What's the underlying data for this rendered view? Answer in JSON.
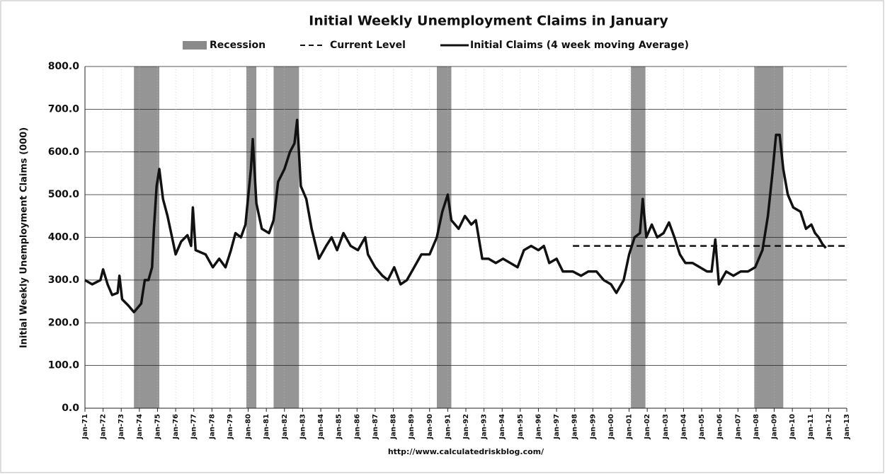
{
  "chart_data": {
    "type": "line",
    "title": "Initial Weekly Unemployment Claims in January",
    "y_label": "Initial Weekly Unemployment Claims (000)",
    "source": "http://www.calculatedriskblog.com/",
    "xlim": [
      1971,
      2013
    ],
    "ylim": [
      0,
      800
    ],
    "yticks": [
      {
        "value": 0,
        "label": "0.0"
      },
      {
        "value": 100,
        "label": "100.0"
      },
      {
        "value": 200,
        "label": "200.0"
      },
      {
        "value": 300,
        "label": "300.0"
      },
      {
        "value": 400,
        "label": "400.0"
      },
      {
        "value": 500,
        "label": "500.0"
      },
      {
        "value": 600,
        "label": "600.0"
      },
      {
        "value": 700,
        "label": "700.0"
      },
      {
        "value": 800,
        "label": "800.0"
      }
    ],
    "xticks": [
      {
        "value": 1971,
        "label": "Jan-71"
      },
      {
        "value": 1972,
        "label": "Jan-72"
      },
      {
        "value": 1973,
        "label": "Jan-73"
      },
      {
        "value": 1974,
        "label": "Jan-74"
      },
      {
        "value": 1975,
        "label": "Jan-75"
      },
      {
        "value": 1976,
        "label": "Jan-76"
      },
      {
        "value": 1977,
        "label": "Jan-77"
      },
      {
        "value": 1978,
        "label": "Jan-78"
      },
      {
        "value": 1979,
        "label": "Jan-79"
      },
      {
        "value": 1980,
        "label": "Jan-80"
      },
      {
        "value": 1981,
        "label": "Jan-81"
      },
      {
        "value": 1982,
        "label": "Jan-82"
      },
      {
        "value": 1983,
        "label": "Jan-83"
      },
      {
        "value": 1984,
        "label": "Jan-84"
      },
      {
        "value": 1985,
        "label": "Jan-85"
      },
      {
        "value": 1986,
        "label": "Jan-86"
      },
      {
        "value": 1987,
        "label": "Jan-87"
      },
      {
        "value": 1988,
        "label": "Jan-88"
      },
      {
        "value": 1989,
        "label": "Jan-89"
      },
      {
        "value": 1990,
        "label": "Jan-90"
      },
      {
        "value": 1991,
        "label": "Jan-91"
      },
      {
        "value": 1992,
        "label": "Jan-92"
      },
      {
        "value": 1993,
        "label": "Jan-93"
      },
      {
        "value": 1994,
        "label": "Jan-94"
      },
      {
        "value": 1995,
        "label": "Jan-95"
      },
      {
        "value": 1996,
        "label": "Jan-96"
      },
      {
        "value": 1997,
        "label": "Jan-97"
      },
      {
        "value": 1998,
        "label": "Jan-98"
      },
      {
        "value": 1999,
        "label": "Jan-99"
      },
      {
        "value": 2000,
        "label": "Jan-00"
      },
      {
        "value": 2001,
        "label": "Jan-01"
      },
      {
        "value": 2002,
        "label": "Jan-02"
      },
      {
        "value": 2003,
        "label": "Jan-03"
      },
      {
        "value": 2004,
        "label": "Jan-04"
      },
      {
        "value": 2005,
        "label": "Jan-05"
      },
      {
        "value": 2006,
        "label": "Jan-06"
      },
      {
        "value": 2007,
        "label": "Jan-07"
      },
      {
        "value": 2008,
        "label": "Jan-08"
      },
      {
        "value": 2009,
        "label": "Jan-09"
      },
      {
        "value": 2010,
        "label": "Jan-10"
      },
      {
        "value": 2011,
        "label": "Jan-11"
      },
      {
        "value": 2012,
        "label": "Jan-12"
      },
      {
        "value": 2013,
        "label": "Jan-13"
      }
    ],
    "grid": true,
    "recession": {
      "name": "Recession",
      "color": "#8a8a8a",
      "periods": [
        {
          "start": 1973.7,
          "end": 1975.1
        },
        {
          "start": 1979.9,
          "end": 1980.45
        },
        {
          "start": 1981.4,
          "end": 1982.8
        },
        {
          "start": 1990.4,
          "end": 1991.2
        },
        {
          "start": 2001.1,
          "end": 2001.9
        },
        {
          "start": 2007.9,
          "end": 2009.5
        }
      ]
    },
    "current_level": {
      "name": "Current Level",
      "value": 380,
      "start": 1997.9,
      "end": 2013,
      "color": "#111111"
    },
    "x": [
      1971.0,
      1971.4,
      1971.85,
      1972.0,
      1972.25,
      1972.5,
      1972.8,
      1972.9,
      1973.05,
      1973.4,
      1973.7,
      1974.1,
      1974.3,
      1974.5,
      1974.7,
      1974.8,
      1974.95,
      1975.1,
      1975.3,
      1975.55,
      1975.8,
      1976.0,
      1976.3,
      1976.65,
      1976.85,
      1976.95,
      1977.1,
      1977.65,
      1978.05,
      1978.4,
      1978.75,
      1979.05,
      1979.3,
      1979.6,
      1979.85,
      1980.15,
      1980.25,
      1980.45,
      1980.75,
      1981.15,
      1981.4,
      1981.65,
      1982.0,
      1982.3,
      1982.55,
      1982.7,
      1982.9,
      1983.2,
      1983.5,
      1983.9,
      1984.3,
      1984.6,
      1984.9,
      1985.25,
      1985.65,
      1986.05,
      1986.45,
      1986.6,
      1987.0,
      1987.4,
      1987.7,
      1988.05,
      1988.4,
      1988.75,
      1989.15,
      1989.55,
      1990.0,
      1990.4,
      1990.7,
      1991.0,
      1991.2,
      1991.6,
      1991.95,
      1992.3,
      1992.55,
      1992.9,
      1993.25,
      1993.65,
      1994.05,
      1994.45,
      1994.85,
      1995.2,
      1995.6,
      1996.0,
      1996.3,
      1996.6,
      1997.0,
      1997.35,
      1997.9,
      1998.35,
      1998.75,
      1999.2,
      1999.6,
      2000.0,
      2000.3,
      2000.7,
      2001.0,
      2001.3,
      2001.6,
      2001.75,
      2001.95,
      2002.25,
      2002.55,
      2002.9,
      2003.2,
      2003.5,
      2003.8,
      2004.1,
      2004.5,
      2004.9,
      2005.3,
      2005.55,
      2005.75,
      2005.95,
      2006.35,
      2006.75,
      2007.15,
      2007.55,
      2007.95,
      2008.35,
      2008.65,
      2008.9,
      2009.1,
      2009.3,
      2009.5,
      2009.75,
      2010.05,
      2010.45,
      2010.75,
      2011.05,
      2011.25,
      2011.45,
      2011.65,
      2011.85
    ],
    "series": [
      {
        "name": "Initial Claims (4 week moving Average)",
        "color": "#111111",
        "values": [
          300,
          290,
          300,
          325,
          290,
          265,
          270,
          310,
          255,
          240,
          225,
          245,
          300,
          300,
          330,
          420,
          520,
          560,
          490,
          450,
          400,
          360,
          390,
          405,
          380,
          470,
          370,
          360,
          330,
          350,
          330,
          370,
          410,
          400,
          430,
          560,
          630,
          480,
          420,
          410,
          440,
          530,
          560,
          600,
          620,
          675,
          520,
          490,
          420,
          350,
          380,
          400,
          370,
          410,
          380,
          370,
          400,
          360,
          330,
          310,
          300,
          330,
          290,
          300,
          330,
          360,
          360,
          400,
          460,
          500,
          440,
          420,
          450,
          430,
          440,
          350,
          350,
          340,
          350,
          340,
          330,
          370,
          380,
          370,
          380,
          340,
          350,
          320,
          320,
          310,
          320,
          320,
          300,
          290,
          270,
          300,
          360,
          400,
          410,
          490,
          400,
          430,
          400,
          410,
          435,
          400,
          360,
          340,
          340,
          330,
          320,
          320,
          395,
          290,
          320,
          310,
          320,
          320,
          330,
          370,
          450,
          550,
          640,
          640,
          560,
          500,
          470,
          460,
          420,
          430,
          410,
          400,
          385,
          375
        ]
      }
    ]
  }
}
